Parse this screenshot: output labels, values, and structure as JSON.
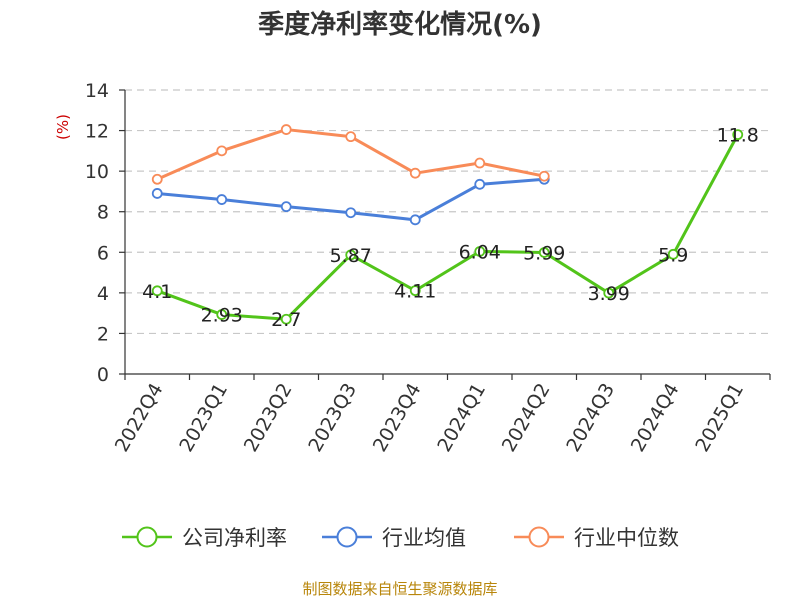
{
  "title": "季度净利率变化情况(%)",
  "source": "制图数据来自恒生聚源数据库",
  "chart_data": {
    "type": "line",
    "title": "季度净利率变化情况(%)",
    "ylabel": "(%)",
    "ylim": [
      0,
      14
    ],
    "yticks": [
      0,
      2,
      4,
      6,
      8,
      10,
      12,
      14
    ],
    "grid": true,
    "legend_position": "bottom",
    "categories": [
      "2022Q4",
      "2023Q1",
      "2023Q2",
      "2023Q3",
      "2023Q4",
      "2024Q1",
      "2024Q2",
      "2024Q3",
      "2024Q4",
      "2025Q1"
    ],
    "series": [
      {
        "name": "公司净利率",
        "color": "#52c41a",
        "labels": true,
        "values": [
          4.1,
          2.93,
          2.7,
          5.87,
          4.11,
          6.04,
          5.99,
          3.99,
          5.9,
          11.8
        ]
      },
      {
        "name": "行业均值",
        "color": "#4a7fd9",
        "labels": false,
        "values": [
          8.9,
          8.6,
          8.25,
          7.95,
          7.6,
          9.35,
          9.6,
          null,
          null,
          null
        ]
      },
      {
        "name": "行业中位数",
        "color": "#f88b58",
        "labels": false,
        "values": [
          9.6,
          11.0,
          12.05,
          11.7,
          9.9,
          10.4,
          9.75,
          null,
          null,
          null
        ]
      }
    ],
    "data_labels": [
      "4.1",
      "2.93",
      "2.7",
      "5.87",
      "4.11",
      "6.04",
      "5.99",
      "3.99",
      "5.9",
      "11.8"
    ]
  }
}
